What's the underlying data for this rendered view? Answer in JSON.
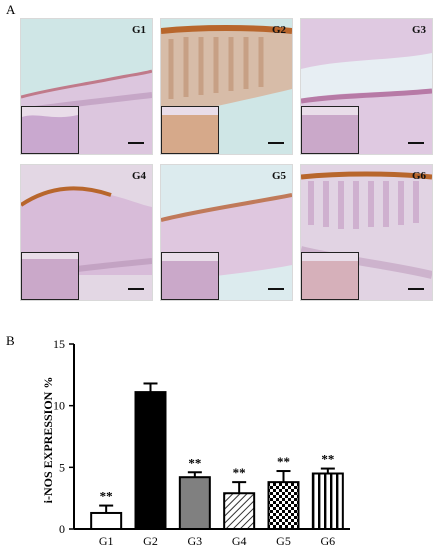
{
  "panel_a_letter": "A",
  "panel_b_letter": "B",
  "micrographs": [
    {
      "label": "G1",
      "stain": "#e7cde0"
    },
    {
      "label": "G2",
      "stain": "#e3c8b8"
    },
    {
      "label": "G3",
      "stain": "#dcc6de"
    },
    {
      "label": "G4",
      "stain": "#e6cde1"
    },
    {
      "label": "G5",
      "stain": "#e8d3e6"
    },
    {
      "label": "G6",
      "stain": "#e2c9d9"
    }
  ],
  "chart_data": {
    "type": "bar",
    "ylabel": "i-NOS EXPRESSION %",
    "ylim": [
      0,
      15
    ],
    "yticks": [
      0,
      5,
      10,
      15
    ],
    "categories": [
      "G1",
      "G2",
      "G3",
      "G4",
      "G5",
      "G6"
    ],
    "values": [
      1.3,
      11.1,
      4.2,
      2.9,
      3.8,
      4.5
    ],
    "errors": [
      0.6,
      0.7,
      0.4,
      0.9,
      0.9,
      0.4
    ],
    "annotations": [
      "**",
      "",
      "**",
      "**",
      "**",
      "**"
    ],
    "fills": [
      "white",
      "black",
      "gray",
      "hatch",
      "checker",
      "vstripes"
    ]
  }
}
